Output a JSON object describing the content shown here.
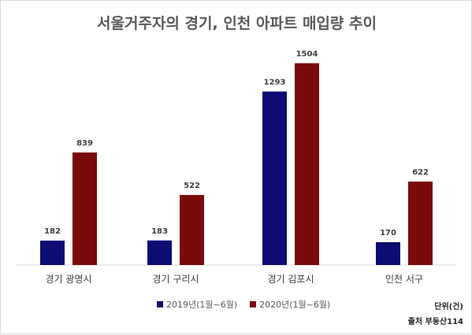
{
  "chart_data": {
    "type": "bar",
    "title": "서울거주자의 경기, 인천 아파트 매입량 추이",
    "categories": [
      "경기 광명시",
      "경기 구리시",
      "경기 김포시",
      "인천 서구"
    ],
    "series": [
      {
        "name": "2019년(1월~6월)",
        "color": "#0c0c72",
        "values": [
          182,
          183,
          1293,
          170
        ]
      },
      {
        "name": "2020년(1월~6월)",
        "color": "#7b0a0a",
        "values": [
          839,
          522,
          1504,
          622
        ]
      }
    ],
    "ylim": [
      0,
      1600
    ],
    "grid": false,
    "legend_position": "bottom",
    "unit_note": "단위(건)",
    "source_note": "출처 부동산114"
  }
}
